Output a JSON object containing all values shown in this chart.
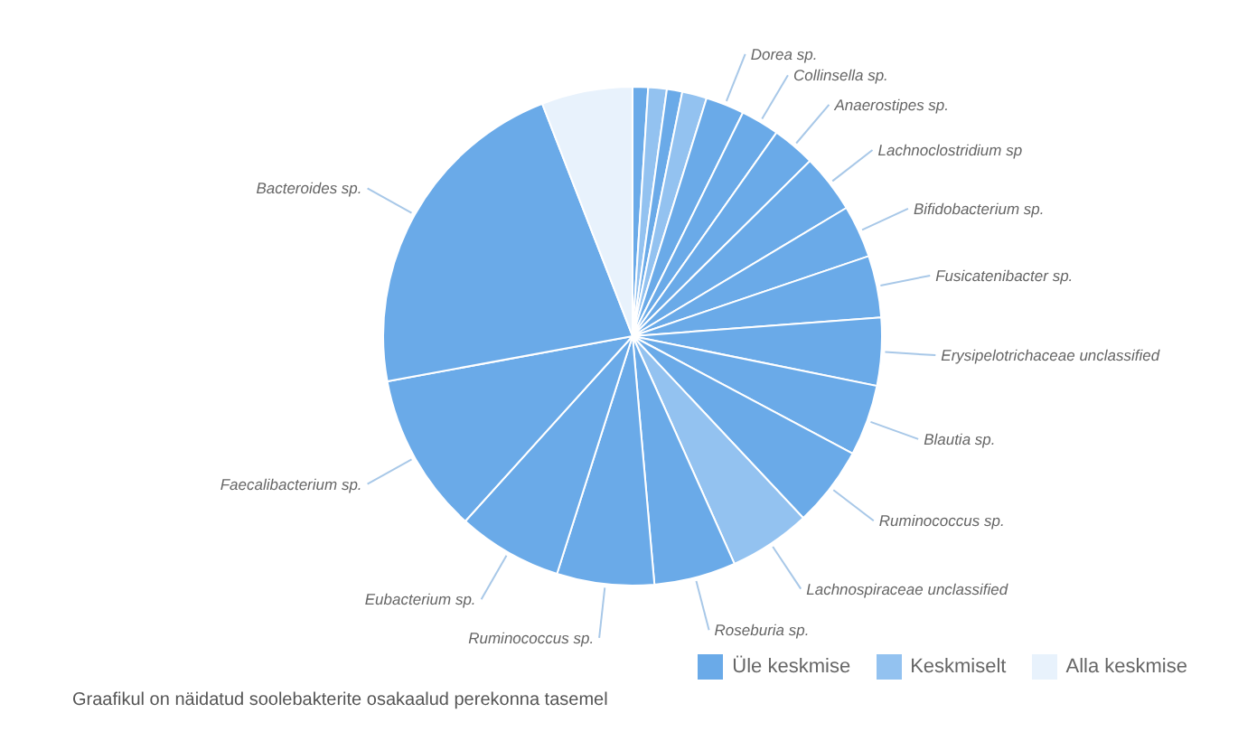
{
  "chart_data": {
    "type": "pie",
    "categories": [
      null,
      null,
      null,
      null,
      "Dorea sp.",
      "Collinsella sp.",
      "Anaerostipes sp.",
      "Lachnoclostridium sp",
      "Bifidobacterium sp.",
      "Fusicatenibacter sp.",
      "Erysipelotrichaceae unclassified",
      "Blautia sp.",
      "Ruminococcus sp.",
      "Lachnospiraceae unclassified",
      "Roseburia sp.",
      "Ruminococcus sp.",
      "Eubacterium sp.",
      "Faecalibacterium sp.",
      "Bacteroides sp.",
      null
    ],
    "values": [
      1.0,
      1.2,
      1.0,
      1.6,
      2.5,
      2.5,
      2.8,
      3.8,
      3.4,
      4.0,
      4.4,
      4.6,
      5.2,
      5.3,
      5.3,
      6.3,
      6.8,
      10.4,
      22.0,
      5.9
    ],
    "colors": [
      "#6aaae8",
      "#93c2f0",
      "#6aaae8",
      "#93c2f0",
      "#6aaae8",
      "#6aaae8",
      "#6aaae8",
      "#6aaae8",
      "#6aaae8",
      "#6aaae8",
      "#6aaae8",
      "#6aaae8",
      "#6aaae8",
      "#93c2f0",
      "#6aaae8",
      "#6aaae8",
      "#6aaae8",
      "#6aaae8",
      "#6aaae8",
      "#e8f2fc"
    ],
    "annotations": [
      "Üle keskmise",
      "Keskmiselt",
      "Alla keskmise",
      "Graafikul on näidatud soolebakterite osakaalud perekonna tasemel"
    ]
  }
}
